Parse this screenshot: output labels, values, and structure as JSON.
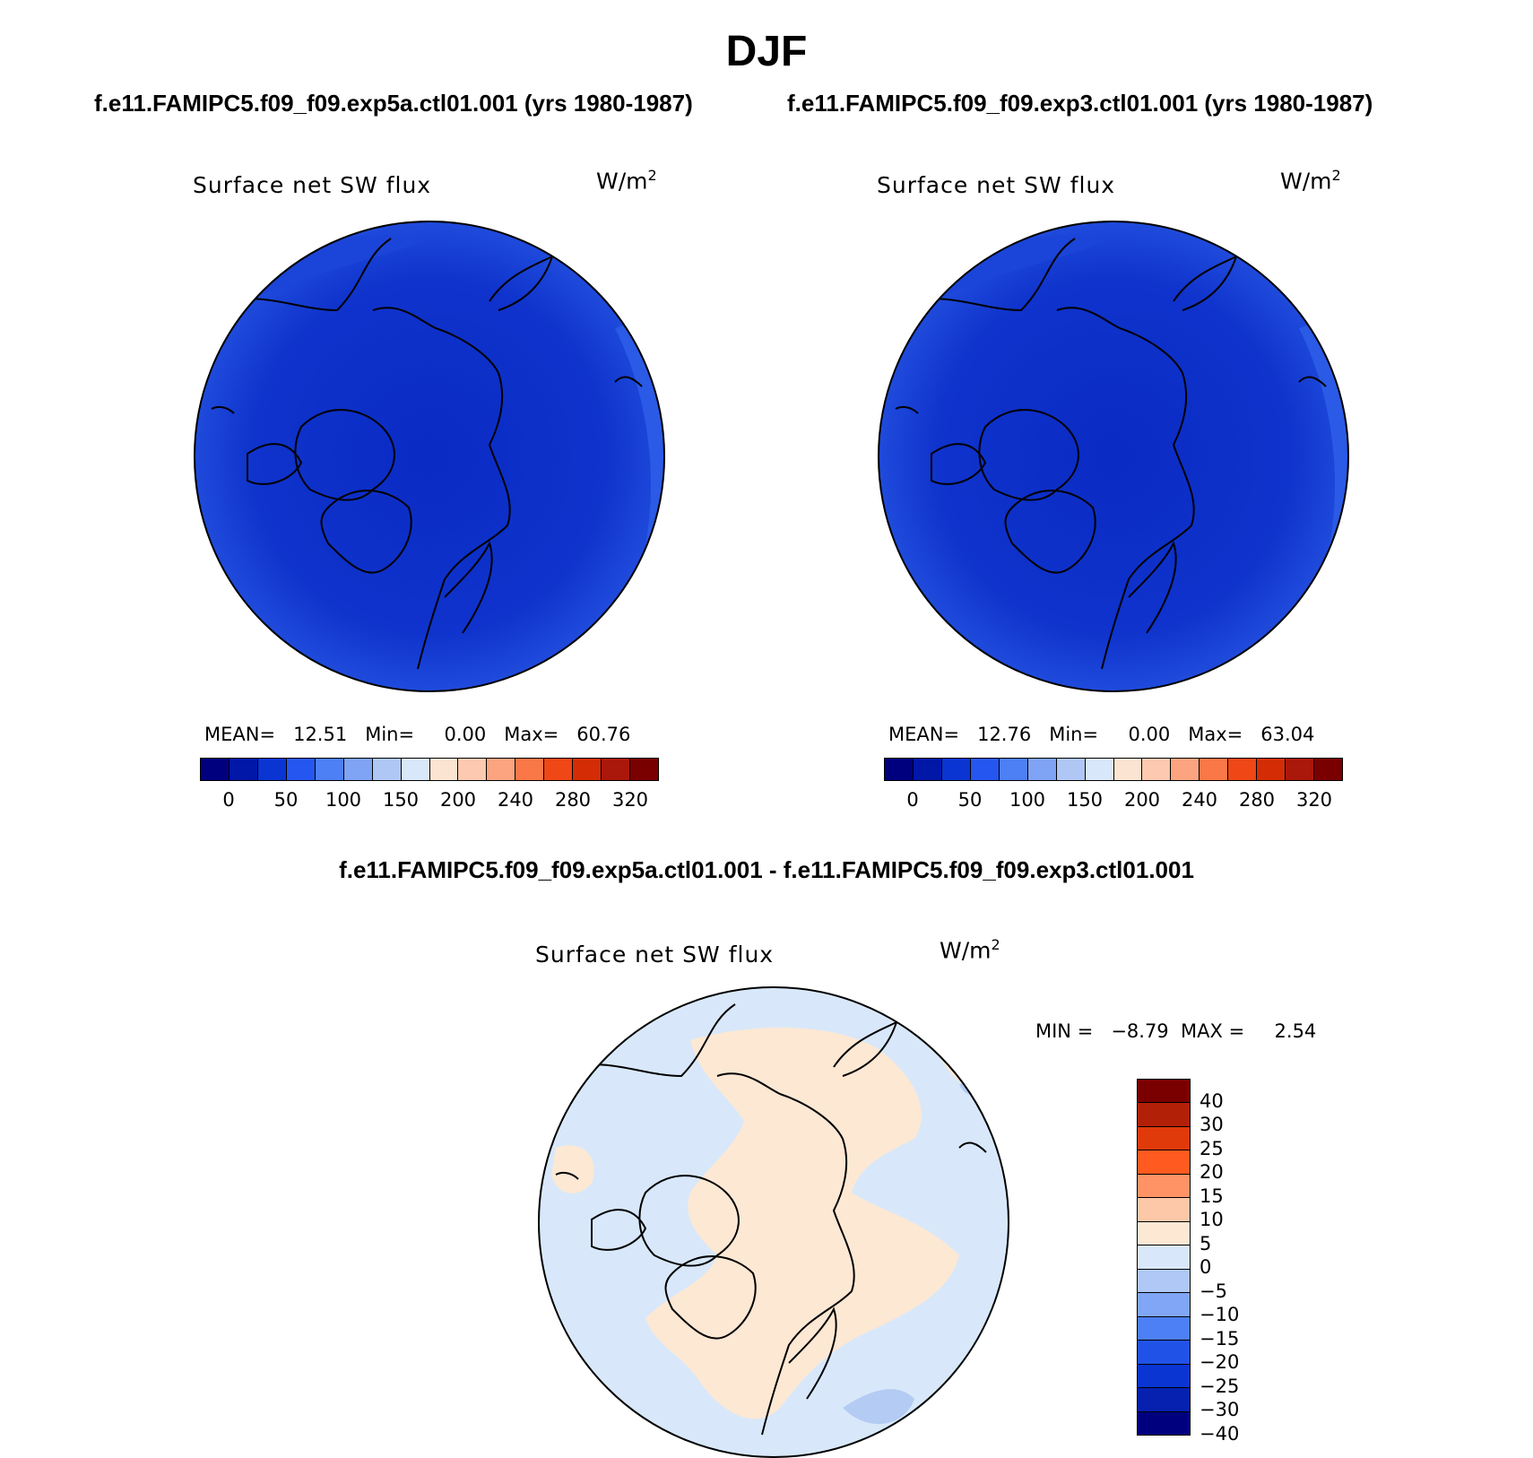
{
  "season": "DJF",
  "case_a_title": "f.e11.FAMIPC5.f09_f09.exp5a.ctl01.001 (yrs 1980-1987)",
  "case_b_title": "f.e11.FAMIPC5.f09_f09.exp3.ctl01.001 (yrs 1980-1987)",
  "diff_title": "f.e11.FAMIPC5.f09_f09.exp5a.ctl01.001 - f.e11.FAMIPC5.f09_f09.exp3.ctl01.001",
  "panels": {
    "a": {
      "variable": "Surface net SW flux",
      "units_base": "W/m",
      "units_exp": "2",
      "stats": "MEAN=   12.51   Min=     0.00   Max=   60.76"
    },
    "b": {
      "variable": "Surface net SW flux",
      "units_base": "W/m",
      "units_exp": "2",
      "stats": "MEAN=   12.76   Min=     0.00   Max=   63.04"
    },
    "diff": {
      "variable": "Surface net SW flux",
      "units_base": "W/m",
      "units_exp": "2",
      "stats": "MIN =   −8.79  MAX =     2.54"
    }
  },
  "colorbar_abs": {
    "colors": [
      "#00007f",
      "#0017a8",
      "#0a35d2",
      "#2656f0",
      "#4d7ff5",
      "#7fa3f5",
      "#afc7f5",
      "#d8e7fa",
      "#fbe5d2",
      "#fdc9b0",
      "#fca47f",
      "#fa7747",
      "#ef4716",
      "#d42d06",
      "#a9180a",
      "#7a0000"
    ],
    "labels": [
      "0",
      "50",
      "100",
      "150",
      "200",
      "240",
      "280",
      "320"
    ]
  },
  "colorbar_diff": {
    "colors": [
      "#7a0000",
      "#b32008",
      "#e03a0a",
      "#ff5a1f",
      "#ff9366",
      "#fdc8a8",
      "#fde8d4",
      "#d8e8fa",
      "#afc8f5",
      "#80a6f5",
      "#4d7ff5",
      "#2152e8",
      "#0a35d2",
      "#0620b0",
      "#00007f"
    ],
    "labels": [
      "40",
      "30",
      "25",
      "20",
      "15",
      "10",
      "5",
      "0",
      "−5",
      "−10",
      "−15",
      "−20",
      "−25",
      "−30",
      "−40"
    ]
  },
  "map_fields": {
    "a": {
      "ocean": "#1237cf",
      "arctic": "#0a2bc4",
      "land_gradient": "#1c47db"
    },
    "b": {
      "ocean": "#1237cf",
      "arctic": "#0a2bc4",
      "land_gradient": "#1c47db"
    },
    "diff": {
      "positive_fill": "#fde8d4",
      "negative_fill": "#d8e8fa",
      "strong_negative": "#b4ccf3"
    }
  }
}
